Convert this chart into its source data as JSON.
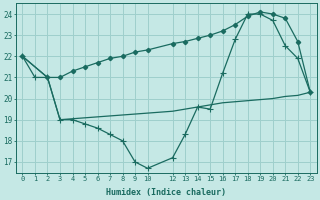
{
  "xlabel": "Humidex (Indice chaleur)",
  "background_color": "#c5e8e5",
  "grid_color": "#9ecfcc",
  "line_color": "#1a6b60",
  "xlim": [
    -0.5,
    23.5
  ],
  "ylim": [
    16.5,
    24.5
  ],
  "xticks": [
    0,
    1,
    2,
    3,
    4,
    5,
    6,
    7,
    8,
    9,
    10,
    12,
    13,
    14,
    15,
    16,
    17,
    18,
    19,
    20,
    21,
    22,
    23
  ],
  "yticks": [
    17,
    18,
    19,
    20,
    21,
    22,
    23,
    24
  ],
  "line1_x": [
    0,
    1,
    2,
    3,
    4,
    5,
    6,
    7,
    8,
    9,
    10,
    12,
    13,
    14,
    15,
    16,
    17,
    18,
    19,
    20,
    21,
    22,
    23
  ],
  "line1_y": [
    22,
    21,
    21,
    19,
    19,
    18.8,
    18.6,
    18.3,
    18.0,
    17.0,
    16.7,
    17.2,
    18.3,
    19.6,
    19.5,
    21.2,
    22.8,
    24.0,
    24.0,
    23.7,
    22.5,
    21.9,
    20.3
  ],
  "line2_x": [
    0,
    2,
    3,
    4,
    5,
    6,
    7,
    8,
    9,
    10,
    12,
    13,
    14,
    15,
    16,
    17,
    18,
    19,
    20,
    21,
    22,
    23
  ],
  "line2_y": [
    22,
    21,
    21,
    21.3,
    21.5,
    21.7,
    21.9,
    22.0,
    22.2,
    22.3,
    22.6,
    22.7,
    22.85,
    23.0,
    23.2,
    23.5,
    23.9,
    24.1,
    24.0,
    23.8,
    22.7,
    20.3
  ],
  "line3_x": [
    0,
    2,
    3,
    12,
    13,
    14,
    15,
    16,
    17,
    18,
    19,
    20,
    21,
    22,
    23
  ],
  "line3_y": [
    22,
    21,
    19,
    19.4,
    19.5,
    19.6,
    19.7,
    19.8,
    19.85,
    19.9,
    19.95,
    20.0,
    20.1,
    20.15,
    20.3
  ]
}
